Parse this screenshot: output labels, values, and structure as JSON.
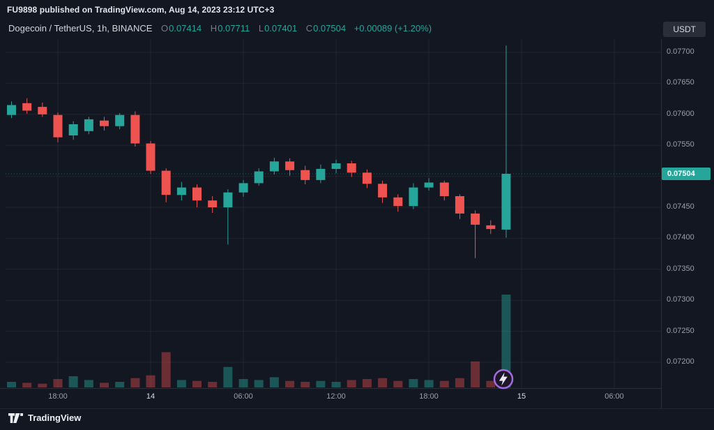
{
  "meta": {
    "published_line": "FU9898 published on TradingView.com, Aug 14, 2023 23:12 UTC+3"
  },
  "header": {
    "symbol": "Dogecoin / TetherUS, 1h, BINANCE",
    "ohlc": {
      "o_label": "O",
      "o": "0.07414",
      "h_label": "H",
      "h": "0.07711",
      "l_label": "L",
      "l": "0.07401",
      "c_label": "C",
      "c": "0.07504",
      "change": "+0.00089 (+1.20%)"
    },
    "currency_button": "USDT"
  },
  "footer": {
    "logo_text": "TradingView"
  },
  "colors": {
    "background": "#131722",
    "up": "#26a69a",
    "down": "#ef5350",
    "vol_up": "rgba(38,166,154,0.45)",
    "vol_down": "rgba(239,83,80,0.40)",
    "grid": "rgba(250,250,250,0.06)",
    "axis_text": "#9aa0aa",
    "badge_bg": "#26a69a",
    "purple": "#a06bdd"
  },
  "chart_data": {
    "type": "candlestick",
    "title": "Dogecoin / TetherUS, 1h, BINANCE",
    "interval": "1h",
    "last_price": 0.07504,
    "last_price_label": "0.07504",
    "ylim": [
      0.0716,
      0.0772
    ],
    "grid": true,
    "volume_scale": "relative height 0-1 (no volume axis shown)",
    "price_axis_ticks": [
      {
        "label": "0.07700",
        "value": 0.077
      },
      {
        "label": "0.07650",
        "value": 0.0765
      },
      {
        "label": "0.07600",
        "value": 0.076
      },
      {
        "label": "0.07550",
        "value": 0.0755
      },
      {
        "label": "0.07450",
        "value": 0.0745
      },
      {
        "label": "0.07400",
        "value": 0.074
      },
      {
        "label": "0.07350",
        "value": 0.0735
      },
      {
        "label": "0.07300",
        "value": 0.073
      },
      {
        "label": "0.07250",
        "value": 0.0725
      },
      {
        "label": "0.07200",
        "value": 0.072
      }
    ],
    "time_axis_ticks": [
      {
        "label": "18:00",
        "major": false
      },
      {
        "label": "14",
        "major": true
      },
      {
        "label": "06:00",
        "major": false
      },
      {
        "label": "12:00",
        "major": false
      },
      {
        "label": "18:00",
        "major": false
      },
      {
        "label": "15",
        "major": true
      },
      {
        "label": "06:00",
        "major": false
      }
    ],
    "candles": [
      {
        "t": "13 15:00",
        "o": 0.07599,
        "h": 0.07621,
        "l": 0.07594,
        "c": 0.07615,
        "v": 0.06
      },
      {
        "t": "13 16:00",
        "o": 0.07618,
        "h": 0.07626,
        "l": 0.07601,
        "c": 0.07606,
        "v": 0.05
      },
      {
        "t": "13 17:00",
        "o": 0.07612,
        "h": 0.07619,
        "l": 0.07596,
        "c": 0.076,
        "v": 0.04
      },
      {
        "t": "13 18:00",
        "o": 0.07599,
        "h": 0.07603,
        "l": 0.07555,
        "c": 0.07563,
        "v": 0.09
      },
      {
        "t": "13 19:00",
        "o": 0.07566,
        "h": 0.07589,
        "l": 0.07559,
        "c": 0.07584,
        "v": 0.12
      },
      {
        "t": "13 20:00",
        "o": 0.07573,
        "h": 0.07596,
        "l": 0.07568,
        "c": 0.07592,
        "v": 0.08
      },
      {
        "t": "13 21:00",
        "o": 0.0759,
        "h": 0.07596,
        "l": 0.07574,
        "c": 0.07581,
        "v": 0.05
      },
      {
        "t": "13 22:00",
        "o": 0.07581,
        "h": 0.07602,
        "l": 0.07576,
        "c": 0.07599,
        "v": 0.06
      },
      {
        "t": "13 23:00",
        "o": 0.07599,
        "h": 0.07605,
        "l": 0.07548,
        "c": 0.07553,
        "v": 0.1
      },
      {
        "t": "14 00:00",
        "o": 0.07553,
        "h": 0.07557,
        "l": 0.07504,
        "c": 0.07509,
        "v": 0.13
      },
      {
        "t": "14 01:00",
        "o": 0.07509,
        "h": 0.07513,
        "l": 0.07458,
        "c": 0.0747,
        "v": 0.38
      },
      {
        "t": "14 02:00",
        "o": 0.0747,
        "h": 0.07491,
        "l": 0.07461,
        "c": 0.07482,
        "v": 0.08
      },
      {
        "t": "14 03:00",
        "o": 0.07482,
        "h": 0.07487,
        "l": 0.0745,
        "c": 0.07461,
        "v": 0.07
      },
      {
        "t": "14 04:00",
        "o": 0.07461,
        "h": 0.07468,
        "l": 0.07441,
        "c": 0.0745,
        "v": 0.06
      },
      {
        "t": "14 05:00",
        "o": 0.0745,
        "h": 0.07479,
        "l": 0.0739,
        "c": 0.07474,
        "v": 0.22
      },
      {
        "t": "14 06:00",
        "o": 0.07474,
        "h": 0.07494,
        "l": 0.07467,
        "c": 0.07489,
        "v": 0.09
      },
      {
        "t": "14 07:00",
        "o": 0.07489,
        "h": 0.07513,
        "l": 0.07485,
        "c": 0.07508,
        "v": 0.08
      },
      {
        "t": "14 08:00",
        "o": 0.07508,
        "h": 0.0753,
        "l": 0.07503,
        "c": 0.07524,
        "v": 0.11
      },
      {
        "t": "14 09:00",
        "o": 0.07524,
        "h": 0.07529,
        "l": 0.07501,
        "c": 0.0751,
        "v": 0.07
      },
      {
        "t": "14 10:00",
        "o": 0.0751,
        "h": 0.07517,
        "l": 0.07487,
        "c": 0.07494,
        "v": 0.06
      },
      {
        "t": "14 11:00",
        "o": 0.07494,
        "h": 0.07519,
        "l": 0.07489,
        "c": 0.07512,
        "v": 0.07
      },
      {
        "t": "14 12:00",
        "o": 0.07512,
        "h": 0.07527,
        "l": 0.07505,
        "c": 0.07521,
        "v": 0.06
      },
      {
        "t": "14 13:00",
        "o": 0.07521,
        "h": 0.07525,
        "l": 0.07499,
        "c": 0.07506,
        "v": 0.08
      },
      {
        "t": "14 14:00",
        "o": 0.07506,
        "h": 0.07511,
        "l": 0.07481,
        "c": 0.07488,
        "v": 0.09
      },
      {
        "t": "14 15:00",
        "o": 0.07488,
        "h": 0.07493,
        "l": 0.07457,
        "c": 0.07466,
        "v": 0.1
      },
      {
        "t": "14 16:00",
        "o": 0.07466,
        "h": 0.07471,
        "l": 0.07443,
        "c": 0.07452,
        "v": 0.07
      },
      {
        "t": "14 17:00",
        "o": 0.07452,
        "h": 0.07489,
        "l": 0.07447,
        "c": 0.07482,
        "v": 0.09
      },
      {
        "t": "14 18:00",
        "o": 0.07482,
        "h": 0.07497,
        "l": 0.07477,
        "c": 0.0749,
        "v": 0.08
      },
      {
        "t": "14 19:00",
        "o": 0.0749,
        "h": 0.07493,
        "l": 0.07461,
        "c": 0.07468,
        "v": 0.07
      },
      {
        "t": "14 20:00",
        "o": 0.07468,
        "h": 0.07471,
        "l": 0.07431,
        "c": 0.0744,
        "v": 0.1
      },
      {
        "t": "14 21:00",
        "o": 0.0744,
        "h": 0.07445,
        "l": 0.07368,
        "c": 0.07422,
        "v": 0.28
      },
      {
        "t": "14 22:00",
        "o": 0.07421,
        "h": 0.07429,
        "l": 0.07407,
        "c": 0.07415,
        "v": 0.07
      },
      {
        "t": "14 23:00",
        "o": 0.07414,
        "h": 0.07711,
        "l": 0.07401,
        "c": 0.07504,
        "v": 1.0
      }
    ]
  }
}
